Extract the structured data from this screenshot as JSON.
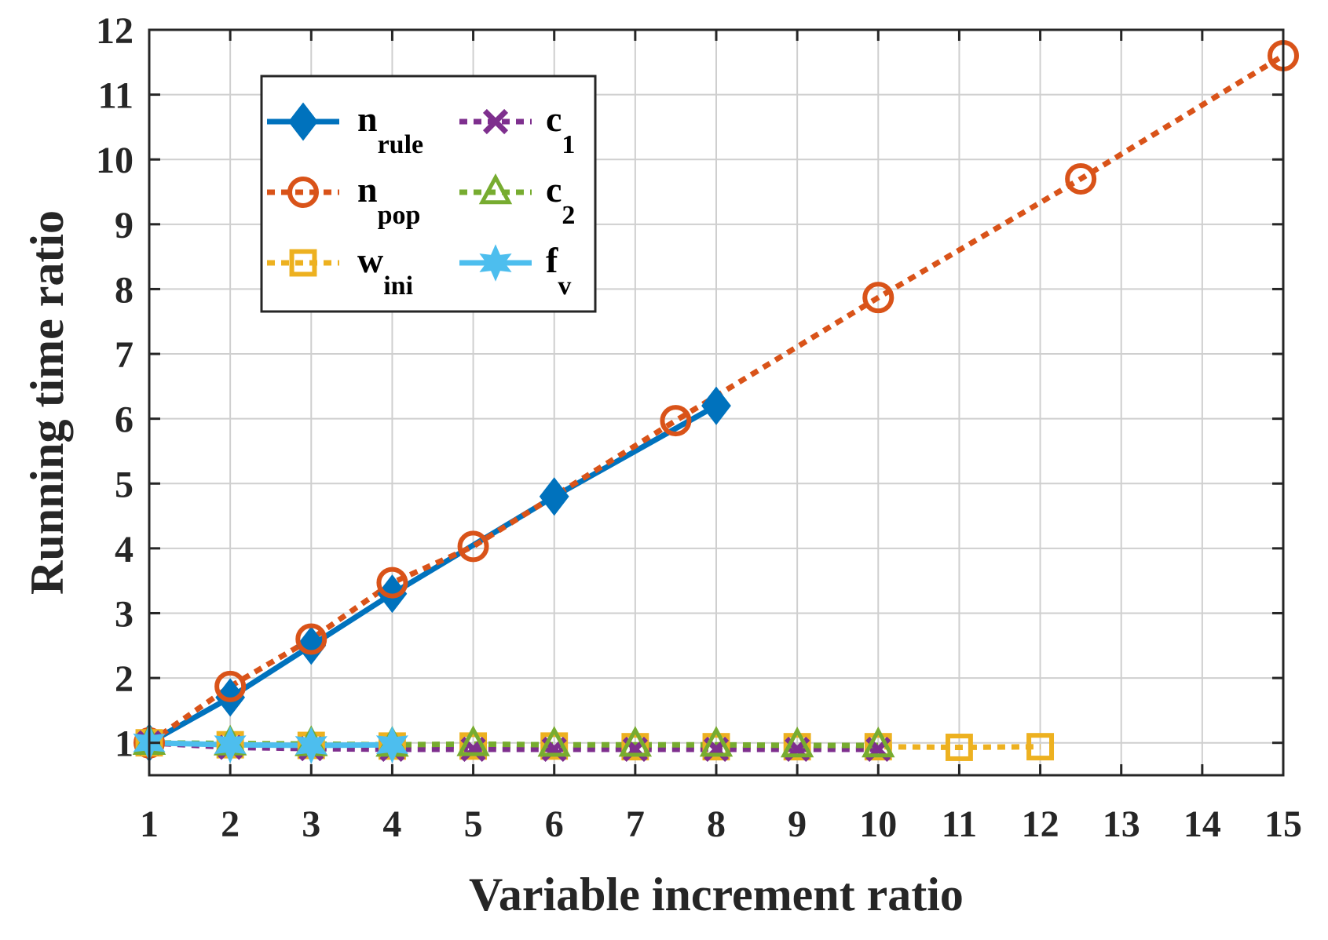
{
  "chart_data": {
    "type": "line",
    "title": "",
    "xlabel": "Variable increment ratio",
    "ylabel": "Running time ratio",
    "xlim": [
      1,
      15
    ],
    "ylim": [
      0.5,
      12
    ],
    "xticks": [
      1,
      2,
      3,
      4,
      5,
      6,
      7,
      8,
      9,
      10,
      11,
      12,
      13,
      14,
      15
    ],
    "yticks": [
      1,
      2,
      3,
      4,
      5,
      6,
      7,
      8,
      9,
      10,
      11,
      12
    ],
    "grid": true,
    "legend_position": "top-left",
    "series": [
      {
        "name": "n_rule",
        "label_main": "n",
        "label_sub": "rule",
        "color": "#0072BD",
        "line": "solid",
        "marker": "diamond",
        "x": [
          1,
          2,
          3,
          4,
          6,
          8
        ],
        "y": [
          1.0,
          1.7,
          2.5,
          3.3,
          4.8,
          6.2
        ]
      },
      {
        "name": "n_pop",
        "label_main": "n",
        "label_sub": "pop",
        "color": "#D95319",
        "line": "dotted",
        "marker": "circle",
        "x": [
          1,
          2,
          3,
          4,
          5,
          7.5,
          10,
          12.5,
          15
        ],
        "y": [
          1.0,
          1.87,
          2.6,
          3.47,
          4.03,
          5.97,
          7.87,
          9.7,
          11.6
        ]
      },
      {
        "name": "w_ini",
        "label_main": "w",
        "label_sub": "ini",
        "color": "#EDB120",
        "line": "dotted",
        "marker": "square",
        "x": [
          1,
          2,
          3,
          4,
          5,
          6,
          7,
          8,
          9,
          10,
          11,
          12
        ],
        "y": [
          1.0,
          0.97,
          0.96,
          0.95,
          0.95,
          0.95,
          0.94,
          0.94,
          0.94,
          0.94,
          0.93,
          0.94
        ]
      },
      {
        "name": "c_1",
        "label_main": "c",
        "label_sub": "1",
        "color": "#7E2F8E",
        "line": "dotted",
        "marker": "x",
        "x": [
          1,
          2,
          3,
          4,
          5,
          6,
          7,
          8,
          9,
          10
        ],
        "y": [
          1.0,
          0.93,
          0.91,
          0.9,
          0.9,
          0.9,
          0.9,
          0.9,
          0.9,
          0.9
        ]
      },
      {
        "name": "c_2",
        "label_main": "c",
        "label_sub": "2",
        "color": "#77AC30",
        "line": "dotted",
        "marker": "triangle",
        "x": [
          1,
          2,
          3,
          4,
          5,
          6,
          7,
          8,
          9,
          10
        ],
        "y": [
          1.0,
          0.99,
          0.98,
          0.97,
          0.98,
          0.97,
          0.97,
          0.97,
          0.96,
          0.96
        ]
      },
      {
        "name": "f_v",
        "label_main": "f",
        "label_sub": "v",
        "color": "#4DBEEE",
        "line": "solid",
        "marker": "star",
        "x": [
          1,
          2,
          3,
          4
        ],
        "y": [
          1.0,
          0.97,
          0.96,
          0.97
        ]
      }
    ]
  }
}
